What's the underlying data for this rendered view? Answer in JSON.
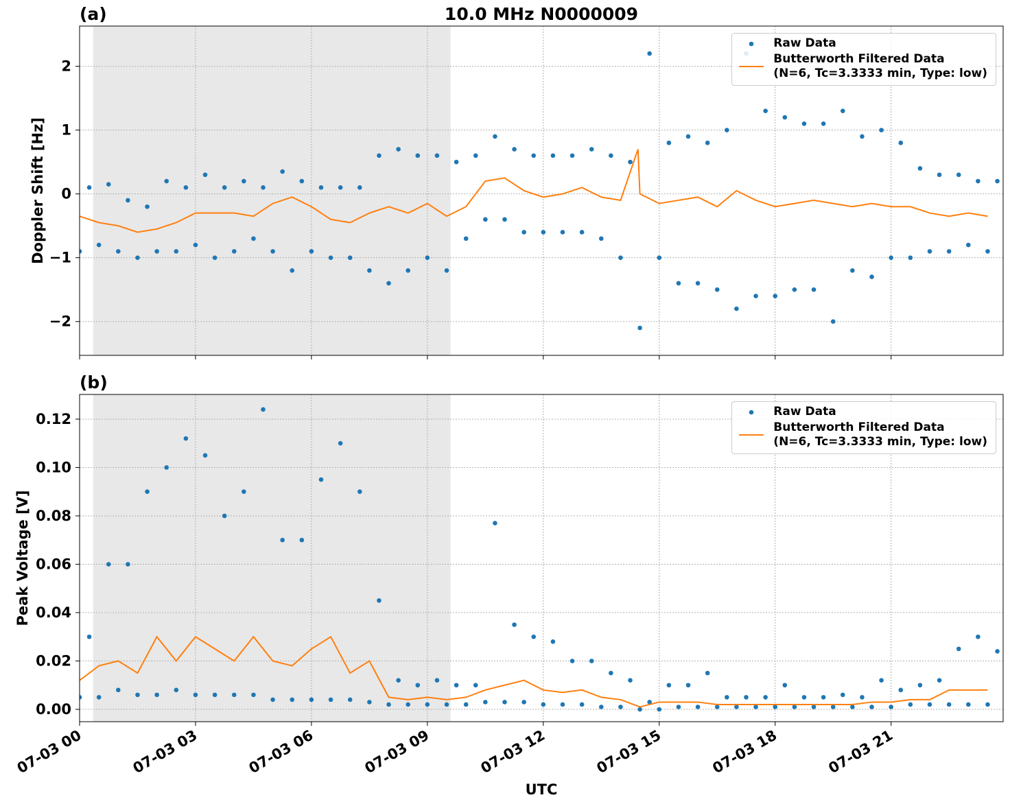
{
  "chart_data": [
    {
      "type": "combo",
      "title": "10.0 MHz N0000009",
      "panel_label": "(a)",
      "ylabel": "Doppler Shift [Hz]",
      "xlim": [
        0,
        23.9
      ],
      "ylim": [
        -2.53,
        2.63
      ],
      "xticks": [
        0,
        3,
        6,
        9,
        12,
        15,
        18,
        21
      ],
      "yticks": [
        {
          "value": -2,
          "label": "−2"
        },
        {
          "value": -1,
          "label": "−1"
        },
        0,
        1,
        2
      ],
      "grid": true,
      "legend": "upper right",
      "shaded_span": [
        0.35,
        9.6
      ],
      "shade_color": "#e8e8e8",
      "series": [
        {
          "name": "Raw Data",
          "type": "scatter",
          "color": "#1f77b4",
          "x": [
            0,
            0.25,
            0.5,
            0.75,
            1,
            1.25,
            1.5,
            1.75,
            2,
            2.25,
            2.5,
            2.75,
            3,
            3.25,
            3.5,
            3.75,
            4,
            4.25,
            4.5,
            4.75,
            5,
            5.25,
            5.5,
            5.75,
            6,
            6.25,
            6.5,
            6.75,
            7,
            7.25,
            7.5,
            7.75,
            8,
            8.25,
            8.5,
            8.75,
            9,
            9.25,
            9.5,
            9.75,
            10,
            10.25,
            10.5,
            10.75,
            11,
            11.25,
            11.5,
            11.75,
            12,
            12.25,
            12.5,
            12.75,
            13,
            13.25,
            13.5,
            13.75,
            14,
            14.25,
            14.5,
            14.75,
            15,
            15.25,
            15.5,
            15.75,
            16,
            16.25,
            16.5,
            16.75,
            17,
            17.25,
            17.5,
            17.75,
            18,
            18.25,
            18.5,
            18.75,
            19,
            19.25,
            19.5,
            19.75,
            20,
            20.25,
            20.5,
            20.75,
            21,
            21.25,
            21.5,
            21.75,
            22,
            22.25,
            22.5,
            22.75,
            23,
            23.25,
            23.5,
            23.75
          ],
          "values": [
            -0.9,
            0.1,
            -0.8,
            0.15,
            -0.9,
            -0.1,
            -1.0,
            -0.2,
            -0.9,
            0.2,
            -0.9,
            0.1,
            -0.8,
            0.3,
            -1.0,
            0.1,
            -0.9,
            0.2,
            -0.7,
            0.1,
            -0.9,
            0.35,
            -1.2,
            0.2,
            -0.9,
            0.1,
            -1.0,
            0.1,
            -1.0,
            0.1,
            -1.2,
            0.6,
            -1.4,
            0.7,
            -1.2,
            0.6,
            -1.0,
            0.6,
            -1.2,
            0.5,
            -0.7,
            0.6,
            -0.4,
            0.9,
            -0.4,
            0.7,
            -0.6,
            0.6,
            -0.6,
            0.6,
            -0.6,
            0.6,
            -0.6,
            0.7,
            -0.7,
            0.6,
            -1.0,
            0.5,
            -2.1,
            2.2,
            -1.0,
            0.8,
            -1.4,
            0.9,
            -1.4,
            0.8,
            -1.5,
            1.0,
            -1.8,
            2.2,
            -1.6,
            1.3,
            -1.6,
            1.2,
            -1.5,
            1.1,
            -1.5,
            1.1,
            -2.0,
            1.3,
            -1.2,
            0.9,
            -1.3,
            1.0,
            -1.0,
            0.8,
            -1.0,
            0.4,
            -0.9,
            0.3,
            -0.9,
            0.3,
            -0.8,
            0.2,
            -0.9,
            0.2
          ]
        },
        {
          "name": "Butterworth Filtered Data\n(N=6, Tc=3.3333 min, Type: low)",
          "type": "line",
          "color": "#ff7f0e",
          "x": [
            0,
            0.5,
            1,
            1.5,
            2,
            2.5,
            3,
            3.5,
            4,
            4.5,
            5,
            5.5,
            6,
            6.5,
            7,
            7.5,
            8,
            8.5,
            9,
            9.5,
            10,
            10.5,
            11,
            11.5,
            12,
            12.5,
            13,
            13.5,
            14,
            14.45,
            14.5,
            15,
            15.5,
            16,
            16.5,
            17,
            17.5,
            18,
            18.5,
            19,
            19.5,
            20,
            20.5,
            21,
            21.5,
            22,
            22.5,
            23,
            23.5
          ],
          "values": [
            -0.35,
            -0.45,
            -0.5,
            -0.6,
            -0.55,
            -0.45,
            -0.3,
            -0.3,
            -0.3,
            -0.35,
            -0.15,
            -0.05,
            -0.2,
            -0.4,
            -0.45,
            -0.3,
            -0.2,
            -0.3,
            -0.15,
            -0.35,
            -0.2,
            0.2,
            0.25,
            0.05,
            -0.05,
            0.0,
            0.1,
            -0.05,
            -0.1,
            0.7,
            0.0,
            -0.15,
            -0.1,
            -0.05,
            -0.2,
            0.05,
            -0.1,
            -0.2,
            -0.15,
            -0.1,
            -0.15,
            -0.2,
            -0.15,
            -0.2,
            -0.2,
            -0.3,
            -0.35,
            -0.3,
            -0.35
          ]
        }
      ]
    },
    {
      "type": "combo",
      "panel_label": "(b)",
      "ylabel": "Peak Voltage [V]",
      "xlabel": "UTC",
      "xlim": [
        0,
        23.9
      ],
      "ylim": [
        -0.0051,
        0.1302
      ],
      "xticks": [
        {
          "value": 0,
          "label": "07-03 00"
        },
        {
          "value": 3,
          "label": "07-03 03"
        },
        {
          "value": 6,
          "label": "07-03 06"
        },
        {
          "value": 9,
          "label": "07-03 09"
        },
        {
          "value": 12,
          "label": "07-03 12"
        },
        {
          "value": 15,
          "label": "07-03 15"
        },
        {
          "value": 18,
          "label": "07-03 18"
        },
        {
          "value": 21,
          "label": "07-03 21"
        }
      ],
      "yticks": [
        {
          "value": 0,
          "label": "0.00"
        },
        0.02,
        0.04,
        0.06,
        0.08,
        {
          "value": 0.1,
          "label": "0.10"
        },
        0.12
      ],
      "grid": true,
      "legend": "upper right",
      "shaded_span": [
        0.35,
        9.6
      ],
      "shade_color": "#e8e8e8",
      "series": [
        {
          "name": "Raw Data",
          "type": "scatter",
          "color": "#1f77b4",
          "x": [
            0,
            0.25,
            0.5,
            0.75,
            1,
            1.25,
            1.5,
            1.75,
            2,
            2.25,
            2.5,
            2.75,
            3,
            3.25,
            3.5,
            3.75,
            4,
            4.25,
            4.5,
            4.75,
            5,
            5.25,
            5.5,
            5.75,
            6,
            6.25,
            6.5,
            6.75,
            7,
            7.25,
            7.5,
            7.75,
            8,
            8.25,
            8.5,
            8.75,
            9,
            9.25,
            9.5,
            9.75,
            10,
            10.25,
            10.5,
            10.75,
            11,
            11.25,
            11.5,
            11.75,
            12,
            12.25,
            12.5,
            12.75,
            13,
            13.25,
            13.5,
            13.75,
            14,
            14.25,
            14.5,
            14.75,
            15,
            15.25,
            15.5,
            15.75,
            16,
            16.25,
            16.5,
            16.75,
            17,
            17.25,
            17.5,
            17.75,
            18,
            18.25,
            18.5,
            18.75,
            19,
            19.25,
            19.5,
            19.75,
            20,
            20.25,
            20.5,
            20.75,
            21,
            21.25,
            21.5,
            21.75,
            22,
            22.25,
            22.5,
            22.75,
            23,
            23.25,
            23.5,
            23.75
          ],
          "values": [
            0.005,
            0.03,
            0.005,
            0.06,
            0.008,
            0.06,
            0.006,
            0.09,
            0.006,
            0.1,
            0.008,
            0.112,
            0.006,
            0.105,
            0.006,
            0.08,
            0.006,
            0.09,
            0.006,
            0.124,
            0.004,
            0.07,
            0.004,
            0.07,
            0.004,
            0.095,
            0.004,
            0.11,
            0.004,
            0.09,
            0.003,
            0.045,
            0.002,
            0.012,
            0.002,
            0.01,
            0.002,
            0.012,
            0.002,
            0.01,
            0.002,
            0.01,
            0.003,
            0.077,
            0.003,
            0.035,
            0.003,
            0.03,
            0.002,
            0.028,
            0.002,
            0.02,
            0.002,
            0.02,
            0.001,
            0.015,
            0.001,
            0.012,
            0.0,
            0.003,
            0.0,
            0.01,
            0.001,
            0.01,
            0.001,
            0.015,
            0.001,
            0.005,
            0.001,
            0.005,
            0.001,
            0.005,
            0.001,
            0.01,
            0.001,
            0.005,
            0.001,
            0.005,
            0.001,
            0.006,
            0.001,
            0.005,
            0.001,
            0.012,
            0.001,
            0.008,
            0.002,
            0.01,
            0.002,
            0.012,
            0.002,
            0.025,
            0.002,
            0.03,
            0.002,
            0.024
          ]
        },
        {
          "name": "Butterworth Filtered Data\n(N=6, Tc=3.3333 min, Type: low)",
          "type": "line",
          "color": "#ff7f0e",
          "x": [
            0,
            0.5,
            1,
            1.5,
            2,
            2.5,
            3,
            3.5,
            4,
            4.5,
            5,
            5.5,
            6,
            6.5,
            7,
            7.5,
            8,
            8.5,
            9,
            9.5,
            10,
            10.5,
            11,
            11.5,
            12,
            12.5,
            13,
            13.5,
            14,
            14.5,
            15,
            15.5,
            16,
            16.5,
            17,
            17.5,
            18,
            18.5,
            19,
            19.5,
            20,
            20.5,
            21,
            21.5,
            22,
            22.5,
            23,
            23.5
          ],
          "values": [
            0.012,
            0.018,
            0.02,
            0.015,
            0.03,
            0.02,
            0.03,
            0.025,
            0.02,
            0.03,
            0.02,
            0.018,
            0.025,
            0.03,
            0.015,
            0.02,
            0.005,
            0.004,
            0.005,
            0.004,
            0.005,
            0.008,
            0.01,
            0.012,
            0.008,
            0.007,
            0.008,
            0.005,
            0.004,
            0.001,
            0.003,
            0.003,
            0.003,
            0.002,
            0.002,
            0.002,
            0.002,
            0.002,
            0.002,
            0.002,
            0.002,
            0.003,
            0.003,
            0.004,
            0.004,
            0.008,
            0.008,
            0.008
          ]
        }
      ]
    }
  ]
}
